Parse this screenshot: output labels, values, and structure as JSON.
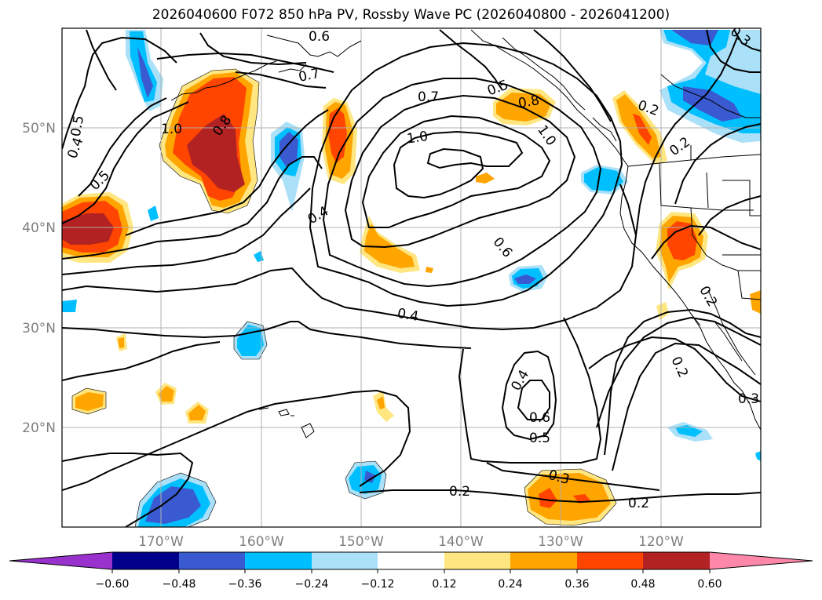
{
  "title": "2026040600 F072 850 hPa PV, Rossby Wave PC (2026040800 - 2026041200)",
  "lat_ticks": [
    "50°N",
    "40°N",
    "30°N",
    "20°N"
  ],
  "lon_ticks": [
    "170°W",
    "160°W",
    "150°W",
    "140°W",
    "130°W",
    "120°W"
  ],
  "colorbar": {
    "ticks": [
      "−0.60",
      "−0.48",
      "−0.36",
      "−0.24",
      "−0.12",
      "0.12",
      "0.24",
      "0.36",
      "0.48",
      "0.60"
    ],
    "colors": [
      "#9932cc",
      "#00008b",
      "#3a5ad1",
      "#00bfff",
      "#aae0f8",
      "#ffffff",
      "#ffe680",
      "#ffa500",
      "#ff4500",
      "#b22222",
      "#ff88aa"
    ]
  },
  "contour_labels": [
    "0.7",
    "0.6",
    "0.5",
    "0.8",
    "1.0",
    "1.0",
    "0.4",
    "0.5",
    "0.7",
    "0.8",
    "1.0",
    "0.3",
    "0.2",
    "0.2",
    "0.4",
    "0.6",
    "0.4",
    "0.4",
    "0.6",
    "0.5",
    "0.3",
    "0.2",
    "0.2",
    "0.2",
    "0.3",
    "0.2",
    "0.5"
  ],
  "colors": {
    "contour": "#000000",
    "grid": "#b0b0b0",
    "tick_text": "#7f7f7f"
  }
}
